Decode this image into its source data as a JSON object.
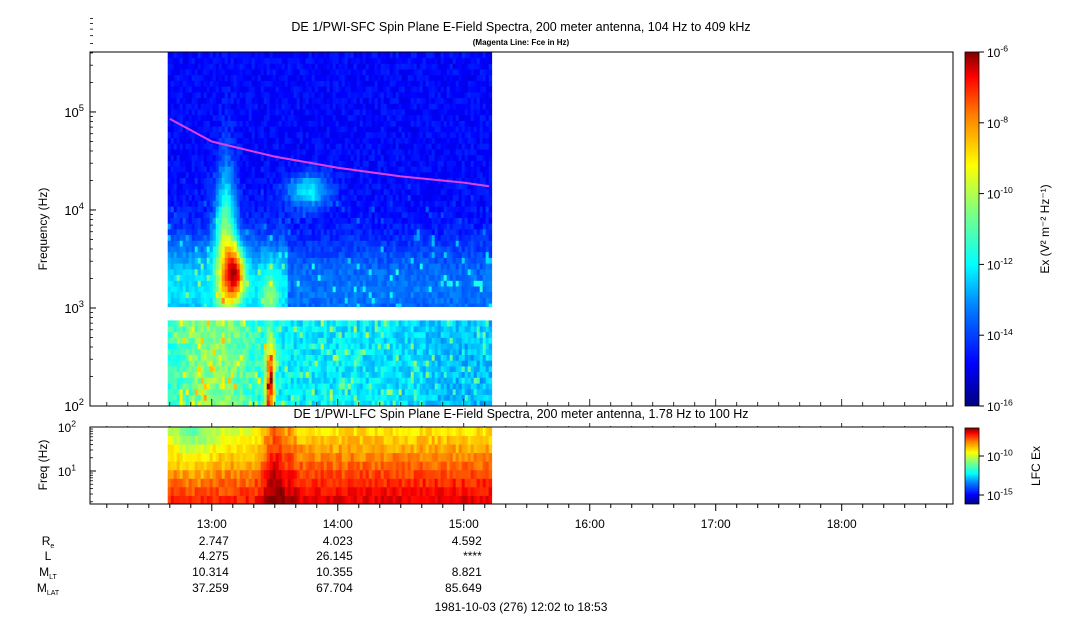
{
  "top_panel": {
    "title": "DE 1/PWI-SFC  Spin Plane E-Field Spectra, 200 meter antenna, 104 Hz to 409 kHz",
    "subtitle": "(Magenta Line: Fce in Hz)",
    "ylabel": "Frequency (Hz)",
    "y_ticks": [
      {
        "base": "10",
        "exp": "2"
      },
      {
        "base": "10",
        "exp": "3"
      },
      {
        "base": "10",
        "exp": "4"
      },
      {
        "base": "10",
        "exp": "5"
      }
    ],
    "colorbar_label": "Ex (V² m⁻² Hz⁻¹)",
    "colorbar_ticks": [
      {
        "base": "10",
        "exp": "-6"
      },
      {
        "base": "10",
        "exp": "-8"
      },
      {
        "base": "10",
        "exp": "-10"
      },
      {
        "base": "10",
        "exp": "-12"
      },
      {
        "base": "10",
        "exp": "-14"
      },
      {
        "base": "10",
        "exp": "-16"
      }
    ]
  },
  "bottom_panel": {
    "title": "DE 1/PWI-LFC  Spin Plane E-Field Spectra, 200 meter antenna, 1.78 Hz to 100 Hz",
    "ylabel": "Freq (Hz)",
    "y_ticks": [
      {
        "base": "10",
        "exp": "1"
      },
      {
        "base": "10",
        "exp": "2"
      }
    ],
    "colorbar_label": "LFC Ex",
    "colorbar_ticks": [
      {
        "base": "10",
        "exp": "-10"
      },
      {
        "base": "10",
        "exp": "-15"
      }
    ]
  },
  "x_tick_labels": [
    "13:00",
    "14:00",
    "15:00",
    "16:00",
    "17:00",
    "18:00"
  ],
  "ephemeris": {
    "labels": [
      {
        "main": "R",
        "sub": "e"
      },
      {
        "main": "L",
        "sub": ""
      },
      {
        "main": "M",
        "sub": "LT"
      },
      {
        "main": "M",
        "sub": "LAT"
      }
    ],
    "columns": [
      [
        "2.747",
        "4.275",
        "10.314",
        "37.259"
      ],
      [
        "4.023",
        "26.145",
        "10.355",
        "67.704"
      ],
      [
        "4.592",
        "****",
        "8.821",
        "85.649"
      ]
    ]
  },
  "footer": "1981-10-03 (276) 12:02 to 18:53",
  "colors": {
    "fce_line": "#e040e0",
    "colormap": [
      "#00007f",
      "#0000ff",
      "#0080ff",
      "#00ffff",
      "#80ff80",
      "#ffff00",
      "#ff8000",
      "#ff0000",
      "#7f0000"
    ]
  },
  "chart_data": [
    {
      "type": "heatmap",
      "title": "DE 1/PWI-SFC  Spin Plane E-Field Spectra, 200 meter antenna, 104 Hz to 409 kHz",
      "ylabel": "Frequency (Hz)",
      "y_scale": "log",
      "ylim": [
        100,
        409000
      ],
      "x_range": [
        "12:02",
        "18:53"
      ],
      "data_coverage": [
        "12:39",
        "15:13"
      ],
      "z_label": "Ex (V^2 m^-2 Hz^-1)",
      "z_scale": "log",
      "zlim": [
        1e-16,
        1e-06
      ],
      "series": [
        {
          "name": "Fce in Hz",
          "x": [
            "12:40",
            "13:00",
            "13:30",
            "14:00",
            "14:30",
            "15:00",
            "15:12"
          ],
          "y": [
            85000,
            50000,
            35000,
            27000,
            22000,
            19000,
            17500
          ]
        }
      ]
    },
    {
      "type": "heatmap",
      "title": "DE 1/PWI-LFC  Spin Plane E-Field Spectra, 200 meter antenna, 1.78 Hz to 100 Hz",
      "ylabel": "Freq (Hz)",
      "y_scale": "log",
      "ylim": [
        1.78,
        100
      ],
      "x_range": [
        "12:02",
        "18:53"
      ],
      "data_coverage": [
        "12:39",
        "15:13"
      ],
      "z_label": "LFC Ex",
      "z_scale": "log",
      "zlim": [
        1e-17,
        1e-07
      ]
    }
  ]
}
